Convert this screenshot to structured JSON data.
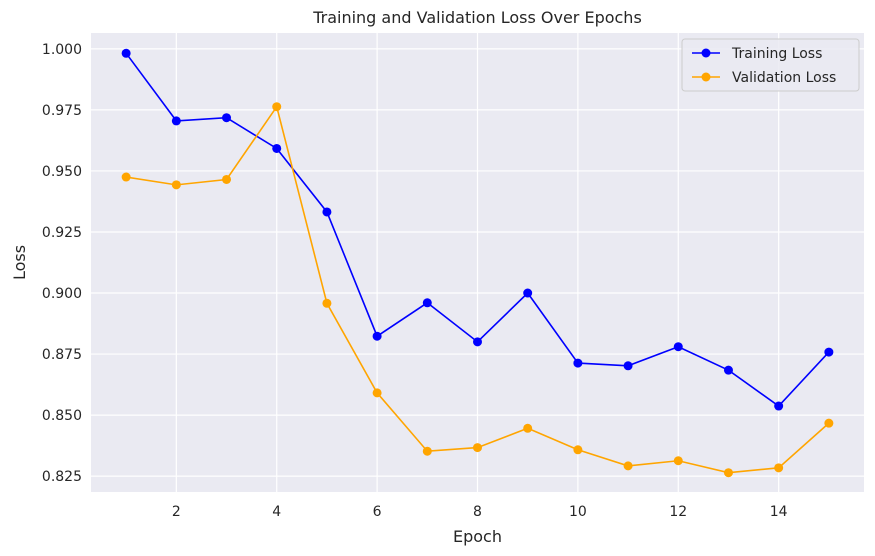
{
  "chart_data": {
    "type": "line",
    "title": "Training and Validation Loss Over Epochs",
    "xlabel": "Epoch",
    "ylabel": "Loss",
    "x": [
      1,
      2,
      3,
      4,
      5,
      6,
      7,
      8,
      9,
      10,
      11,
      12,
      13,
      14,
      15
    ],
    "xlim": [
      0.3,
      15.7
    ],
    "ylim": [
      0.8185,
      1.0065
    ],
    "xticks": [
      2,
      4,
      6,
      8,
      10,
      12,
      14
    ],
    "yticks": [
      0.825,
      0.85,
      0.875,
      0.9,
      0.925,
      0.95,
      0.975,
      1.0
    ],
    "xtick_labels": [
      "2",
      "4",
      "6",
      "8",
      "10",
      "12",
      "14"
    ],
    "ytick_labels": [
      "0.825",
      "0.850",
      "0.875",
      "0.900",
      "0.925",
      "0.950",
      "0.975",
      "1.000"
    ],
    "grid": true,
    "legend_position": "top-right",
    "series": [
      {
        "name": "Training Loss",
        "color": "#0000ff",
        "values": [
          0.9982,
          0.9705,
          0.9718,
          0.9592,
          0.9332,
          0.8823,
          0.896,
          0.88,
          0.9,
          0.8713,
          0.8702,
          0.878,
          0.8684,
          0.8537,
          0.8758
        ]
      },
      {
        "name": "Validation Loss",
        "color": "#ffa500",
        "values": [
          0.9475,
          0.9443,
          0.9465,
          0.9763,
          0.8958,
          0.8591,
          0.8352,
          0.8367,
          0.8446,
          0.8358,
          0.8292,
          0.8313,
          0.8264,
          0.8284,
          0.8467
        ]
      }
    ],
    "background_color": "#eaeaf2",
    "grid_color": "#ffffff"
  }
}
